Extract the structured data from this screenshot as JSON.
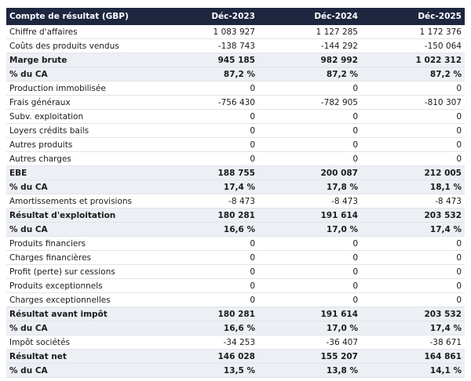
{
  "table": {
    "header": [
      "Compte de résultat (GBP)",
      "Déc-2023",
      "Déc-2024",
      "Déc-2025"
    ],
    "rows": [
      {
        "cells": [
          "Chiffre d'affaires",
          "1 083 927",
          "1 127 285",
          "1 172 376"
        ],
        "emphasis": false
      },
      {
        "cells": [
          "Coûts des produits vendus",
          "-138 743",
          "-144 292",
          "-150 064"
        ],
        "emphasis": false
      },
      {
        "cells": [
          "Marge brute",
          "945 185",
          "982 992",
          "1 022 312"
        ],
        "emphasis": true
      },
      {
        "cells": [
          "% du CA",
          "87,2 %",
          "87,2 %",
          "87,2 %"
        ],
        "emphasis": true
      },
      {
        "cells": [
          "Production immobilisée",
          "0",
          "0",
          "0"
        ],
        "emphasis": false
      },
      {
        "cells": [
          "Frais généraux",
          "-756 430",
          "-782 905",
          "-810 307"
        ],
        "emphasis": false
      },
      {
        "cells": [
          "Subv. exploitation",
          "0",
          "0",
          "0"
        ],
        "emphasis": false
      },
      {
        "cells": [
          "Loyers crédits bails",
          "0",
          "0",
          "0"
        ],
        "emphasis": false
      },
      {
        "cells": [
          "Autres produits",
          "0",
          "0",
          "0"
        ],
        "emphasis": false
      },
      {
        "cells": [
          "Autres charges",
          "0",
          "0",
          "0"
        ],
        "emphasis": false
      },
      {
        "cells": [
          "EBE",
          "188 755",
          "200 087",
          "212 005"
        ],
        "emphasis": true
      },
      {
        "cells": [
          "% du CA",
          "17,4 %",
          "17,8 %",
          "18,1 %"
        ],
        "emphasis": true
      },
      {
        "cells": [
          "Amortissements et provisions",
          "-8 473",
          "-8 473",
          "-8 473"
        ],
        "emphasis": false
      },
      {
        "cells": [
          "Résultat d'exploitation",
          "180 281",
          "191 614",
          "203 532"
        ],
        "emphasis": true
      },
      {
        "cells": [
          "% du CA",
          "16,6 %",
          "17,0 %",
          "17,4 %"
        ],
        "emphasis": true
      },
      {
        "cells": [
          "Produits financiers",
          "0",
          "0",
          "0"
        ],
        "emphasis": false
      },
      {
        "cells": [
          "Charges financières",
          "0",
          "0",
          "0"
        ],
        "emphasis": false
      },
      {
        "cells": [
          "Profit (perte) sur cessions",
          "0",
          "0",
          "0"
        ],
        "emphasis": false
      },
      {
        "cells": [
          "Produits exceptionnels",
          "0",
          "0",
          "0"
        ],
        "emphasis": false
      },
      {
        "cells": [
          "Charges exceptionnelles",
          "0",
          "0",
          "0"
        ],
        "emphasis": false
      },
      {
        "cells": [
          "Résultat avant impôt",
          "180 281",
          "191 614",
          "203 532"
        ],
        "emphasis": true
      },
      {
        "cells": [
          "% du CA",
          "16,6 %",
          "17,0 %",
          "17,4 %"
        ],
        "emphasis": true
      },
      {
        "cells": [
          "Impôt sociétés",
          "-34 253",
          "-36 407",
          "-38 671"
        ],
        "emphasis": false
      },
      {
        "cells": [
          "Résultat net",
          "146 028",
          "155 207",
          "164 861"
        ],
        "emphasis": true
      },
      {
        "cells": [
          "% du CA",
          "13,5 %",
          "13,8 %",
          "14,1 %"
        ],
        "emphasis": true
      }
    ]
  }
}
